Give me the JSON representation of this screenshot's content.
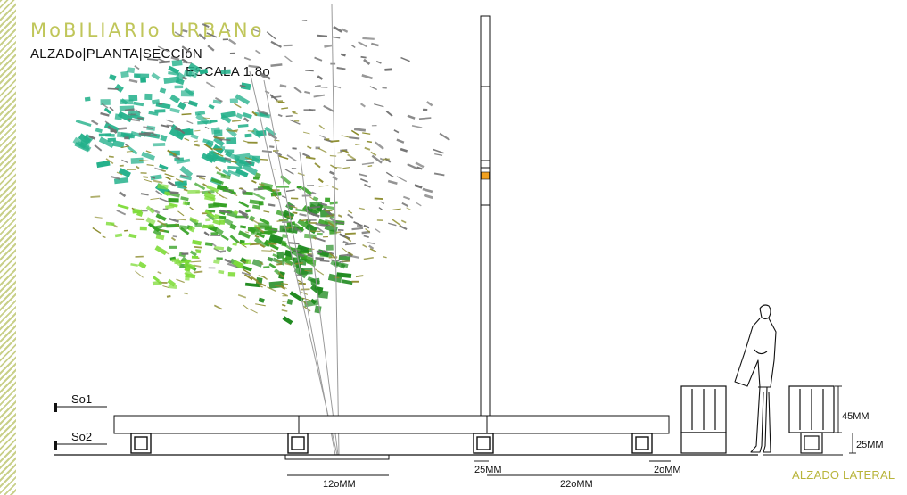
{
  "title": "MoBILIARIo URBANo",
  "subtitle": "ALZADo|PLANTA|SECCIóN",
  "scale": "ESCALA 1.8o",
  "caption": "ALZADO LATERAL",
  "levels": {
    "upper": "So1",
    "lower": "So2"
  },
  "dimensions": {
    "base_width": "12oMM",
    "post_offset": "25MM",
    "span": "22oMM",
    "end_gap": "2oMM",
    "bin_height": "45MM",
    "foot_height": "25MM"
  },
  "colors": {
    "title": "#c0c65a",
    "caption": "#b8b43a",
    "foliage_teal": "#22b08a",
    "foliage_green": "#33a022",
    "foliage_gray": "#707070",
    "foliage_olive": "#8a8a2a",
    "lamp": "#f0a020"
  }
}
